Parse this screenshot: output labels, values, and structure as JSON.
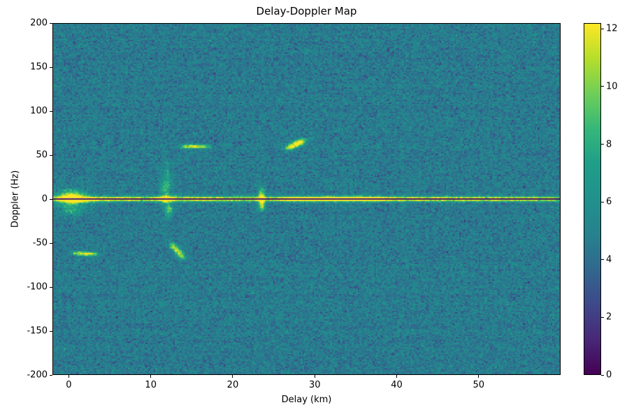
{
  "figure": {
    "title": "Delay-Doppler Map",
    "xlabel": "Delay (km)",
    "ylabel": "Doppler (Hz)"
  },
  "chart_data": {
    "type": "heatmap",
    "title": "Delay-Doppler Map",
    "xlabel": "Delay (km)",
    "ylabel": "Doppler (Hz)",
    "xlim": [
      -2,
      60
    ],
    "ylim": [
      -200,
      200
    ],
    "xticks": [
      0,
      10,
      20,
      30,
      40,
      50
    ],
    "yticks": [
      -200,
      -150,
      -100,
      -50,
      0,
      50,
      100,
      150,
      200
    ],
    "colorbar": {
      "vmin": 0,
      "vmax": 12.2,
      "ticks": [
        0,
        2,
        4,
        6,
        8,
        10,
        12
      ],
      "position": "right"
    },
    "colormap": "viridis",
    "colormap_stops": [
      {
        "t": 0.0,
        "color": "#440154"
      },
      {
        "t": 0.1,
        "color": "#482878"
      },
      {
        "t": 0.2,
        "color": "#3e4989"
      },
      {
        "t": 0.3,
        "color": "#31688e"
      },
      {
        "t": 0.4,
        "color": "#26828e"
      },
      {
        "t": 0.5,
        "color": "#21918c"
      },
      {
        "t": 0.6,
        "color": "#1f9e89"
      },
      {
        "t": 0.7,
        "color": "#35b779"
      },
      {
        "t": 0.8,
        "color": "#6ece58"
      },
      {
        "t": 0.9,
        "color": "#b5de2b"
      },
      {
        "t": 1.0,
        "color": "#fde725"
      }
    ],
    "grid": {
      "cols": 311,
      "rows": 251
    },
    "background_noise": {
      "mean": 4.6,
      "std": 0.8,
      "row_noise": 0.25,
      "seed": 42
    },
    "zero_doppler_dark_row": true,
    "features": [
      {
        "kind": "streak",
        "name": "zero-doppler-ridge",
        "from": [
          -2,
          0
        ],
        "to": [
          60,
          0
        ],
        "sd": 0.5,
        "sh": 2.0,
        "amp": 2.5,
        "n": 150
      },
      {
        "kind": "blob",
        "name": "direct-signal",
        "d": 0.4,
        "h": 1,
        "sd": 1.2,
        "sh": 6,
        "amp": 8.5
      },
      {
        "kind": "blob",
        "name": "direct-signal-sidelobe",
        "d": 0.4,
        "h": -14,
        "sd": 1.0,
        "sh": 3,
        "amp": 3.0
      },
      {
        "kind": "blob",
        "d": 2.6,
        "h": -1,
        "sd": 1.4,
        "sh": 2.5,
        "amp": 2.2
      },
      {
        "kind": "blob",
        "d": 7.0,
        "h": 0,
        "sd": 2.0,
        "sh": 1.6,
        "amp": 1.8
      },
      {
        "kind": "blob",
        "name": "target-12km-vertical",
        "d": 11.8,
        "h": 10,
        "sd": 0.5,
        "sh": 11,
        "amp": 3.2
      },
      {
        "kind": "blob",
        "d": 12.2,
        "h": -13,
        "sd": 0.35,
        "sh": 5,
        "amp": 5.0
      },
      {
        "kind": "blob",
        "d": 12.0,
        "h": 30,
        "sd": 0.3,
        "sh": 10,
        "amp": 2.2
      },
      {
        "kind": "blob",
        "d": 12.0,
        "h": 0,
        "sd": 0.8,
        "sh": 3,
        "amp": 3.5
      },
      {
        "kind": "blob",
        "d": 17.5,
        "h": 0,
        "sd": 2.2,
        "sh": 1.5,
        "amp": 2.0
      },
      {
        "kind": "blob",
        "name": "target-23km-spike",
        "d": 23.5,
        "h": 3,
        "sd": 0.28,
        "sh": 7,
        "amp": 7.0
      },
      {
        "kind": "blob",
        "d": 23.5,
        "h": -8,
        "sd": 0.28,
        "sh": 4,
        "amp": 5.0
      },
      {
        "kind": "blob",
        "d": 27.5,
        "h": 0,
        "sd": 1.2,
        "sh": 1.6,
        "amp": 3.8
      },
      {
        "kind": "blob",
        "name": "bright-ridge-30-37km",
        "d": 31.5,
        "h": 0,
        "sd": 2.6,
        "sh": 1.7,
        "amp": 5.2
      },
      {
        "kind": "blob",
        "d": 35.8,
        "h": 0,
        "sd": 2.4,
        "sh": 1.7,
        "amp": 4.8
      },
      {
        "kind": "blob",
        "d": 45.0,
        "h": 0,
        "sd": 3.0,
        "sh": 1.3,
        "amp": 2.0
      },
      {
        "kind": "blob",
        "d": 53.0,
        "h": 0,
        "sd": 3.0,
        "sh": 1.2,
        "amp": 1.6
      },
      {
        "kind": "streak",
        "name": "moving-target-plus60hz",
        "from": [
          26.8,
          58
        ],
        "to": [
          28.6,
          67
        ],
        "sd": 0.4,
        "sh": 2.0,
        "amp": 3.2,
        "n": 8
      },
      {
        "kind": "streak",
        "from": [
          14.0,
          60
        ],
        "to": [
          16.8,
          60
        ],
        "sd": 0.5,
        "sh": 1.6,
        "amp": 2.2,
        "n": 8
      },
      {
        "kind": "streak",
        "name": "moving-target-minus60hz",
        "from": [
          12.6,
          -52
        ],
        "to": [
          13.9,
          -67
        ],
        "sd": 0.35,
        "sh": 2.0,
        "amp": 3.0,
        "n": 8
      },
      {
        "kind": "streak",
        "from": [
          0.8,
          -62
        ],
        "to": [
          3.2,
          -63
        ],
        "sd": 0.5,
        "sh": 1.6,
        "amp": 2.2,
        "n": 8
      }
    ]
  }
}
